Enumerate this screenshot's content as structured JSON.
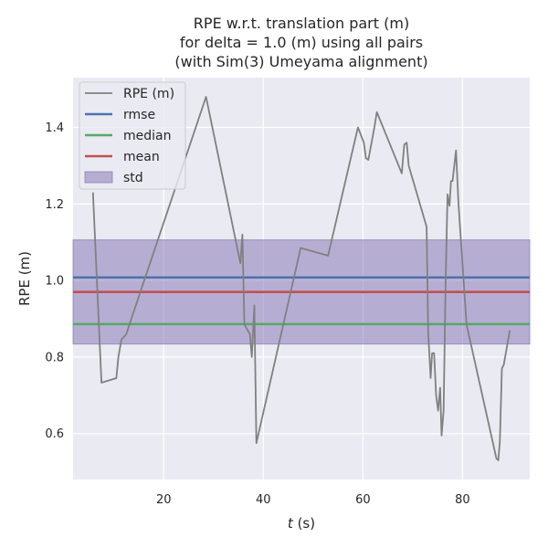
{
  "chart_data": {
    "type": "line",
    "title_lines": [
      "RPE w.r.t. translation part (m)",
      "for delta = 1.0 (m) using all pairs",
      "(with Sim(3) Umeyama alignment)"
    ],
    "xlabel_var": "t",
    "xlabel_unit": " (s)",
    "ylabel": "RPE (m)",
    "xlim": [
      1.8,
      93.5
    ],
    "ylim": [
      0.48,
      1.53
    ],
    "xticks": [
      20,
      40,
      60,
      80
    ],
    "yticks": [
      0.6,
      0.8,
      1.0,
      1.2,
      1.4
    ],
    "ytick_labels": [
      "0.6",
      "0.8",
      "1.0",
      "1.2",
      "1.4"
    ],
    "grid": true,
    "legend_position": "upper-left",
    "series": [
      {
        "name": "RPE (m)",
        "color": "#808080",
        "x": [
          5.8,
          7.5,
          10.5,
          10.9,
          11.5,
          12.5,
          13.5,
          28.5,
          35.4,
          35.8,
          36.2,
          37.3,
          37.7,
          38.2,
          38.6,
          47.5,
          53.0,
          59.0,
          60.2,
          60.6,
          61.1,
          62.3,
          62.8,
          67.8,
          68.3,
          68.8,
          69.2,
          72.8,
          73.1,
          73.6,
          73.9,
          74.3,
          74.7,
          75.1,
          75.5,
          75.8,
          76.2,
          76.6,
          77.0,
          77.4,
          77.7,
          78.0,
          78.7,
          79.2,
          80.8,
          86.8,
          87.2,
          87.5,
          87.9,
          88.3,
          89.5
        ],
        "y": [
          1.23,
          0.733,
          0.745,
          0.8,
          0.845,
          0.86,
          0.9,
          1.48,
          1.045,
          1.12,
          0.885,
          0.86,
          0.8,
          0.935,
          0.575,
          1.085,
          1.065,
          1.4,
          1.36,
          1.32,
          1.315,
          1.4,
          1.44,
          1.28,
          1.355,
          1.36,
          1.3,
          1.14,
          0.865,
          0.745,
          0.81,
          0.81,
          0.7,
          0.66,
          0.72,
          0.595,
          0.66,
          0.995,
          1.225,
          1.195,
          1.26,
          1.26,
          1.34,
          1.2,
          0.885,
          0.535,
          0.53,
          0.58,
          0.77,
          0.78,
          0.87
        ]
      },
      {
        "name": "rmse",
        "color": "#4c72b0",
        "value": 1.008
      },
      {
        "name": "median",
        "color": "#55a868",
        "value": 0.886
      },
      {
        "name": "mean",
        "color": "#c44e52",
        "value": 0.97
      },
      {
        "name": "std",
        "color": "#8172b2",
        "band": [
          0.834,
          1.106
        ]
      }
    ],
    "colors": {
      "plot_background": "#eaeaf2",
      "grid": "#ffffff",
      "legend_background": "#eaeaf2",
      "legend_border": "#cccccc"
    }
  }
}
